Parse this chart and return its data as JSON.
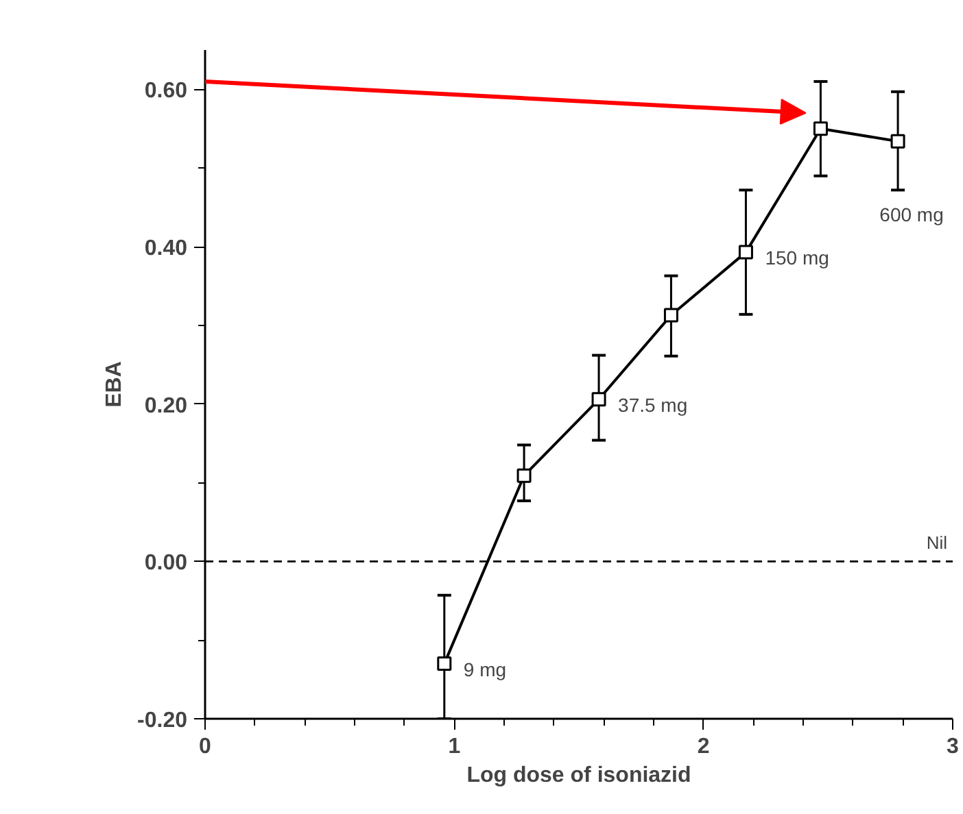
{
  "chart_data": {
    "type": "line",
    "xlabel": "Log dose of isoniazid",
    "ylabel": "EBA",
    "x": [
      0.96,
      1.28,
      1.58,
      1.87,
      2.17,
      2.47,
      2.78
    ],
    "series": [
      {
        "color": "#000000",
        "values": [
          -0.13,
          0.109,
          0.206,
          0.313,
          0.393,
          0.55,
          0.534
        ],
        "errors": [
          [
            -0.2,
            -0.043
          ],
          [
            0.077,
            0.148
          ],
          [
            0.154,
            0.262
          ],
          [
            0.261,
            0.363
          ],
          [
            0.314,
            0.472
          ],
          [
            0.49,
            0.61
          ],
          [
            0.472,
            0.597
          ]
        ]
      }
    ],
    "marker": "square",
    "line_style": "solid",
    "xlim": [
      0,
      3
    ],
    "ylim": [
      -0.2,
      0.65
    ],
    "xticks": [
      0,
      {
        "value": 0.2,
        "label": null
      },
      {
        "value": 0.4,
        "label": null
      },
      {
        "value": 0.6,
        "label": null
      },
      {
        "value": 0.8,
        "label": null
      },
      1,
      {
        "value": 1.2,
        "label": null
      },
      {
        "value": 1.4,
        "label": null
      },
      {
        "value": 1.6,
        "label": null
      },
      {
        "value": 1.8,
        "label": null
      },
      2,
      {
        "value": 2.2,
        "label": null
      },
      {
        "value": 2.4,
        "label": null
      },
      {
        "value": 2.6,
        "label": null
      },
      {
        "value": 2.8,
        "label": null
      },
      3
    ],
    "yticks": [
      {
        "value": -0.2,
        "label": "-0.20"
      },
      {
        "value": -0.1,
        "label": null
      },
      {
        "value": 0,
        "label": "0.00"
      },
      {
        "value": 0.1,
        "label": null
      },
      {
        "value": 0.2,
        "label": "0.20"
      },
      {
        "value": 0.3,
        "label": null
      },
      {
        "value": 0.4,
        "label": "0.40"
      },
      {
        "value": 0.5,
        "label": null
      },
      {
        "value": 0.6,
        "label": "0.60"
      }
    ],
    "ref_lines": [
      {
        "axis": "y",
        "value": 0,
        "label": "Nil",
        "color": "#000000",
        "line_style": "dashed"
      }
    ],
    "annotations": [
      {
        "text": "9 mg",
        "x": 0.96,
        "y": -0.13
      },
      {
        "text": "37.5 mg",
        "x": 1.58,
        "y": 0.206
      },
      {
        "text": "150 mg",
        "x": 2.17,
        "y": 0.393
      },
      {
        "text": "600 mg",
        "x": 2.78,
        "y": 0.472
      }
    ],
    "grid": false
  }
}
